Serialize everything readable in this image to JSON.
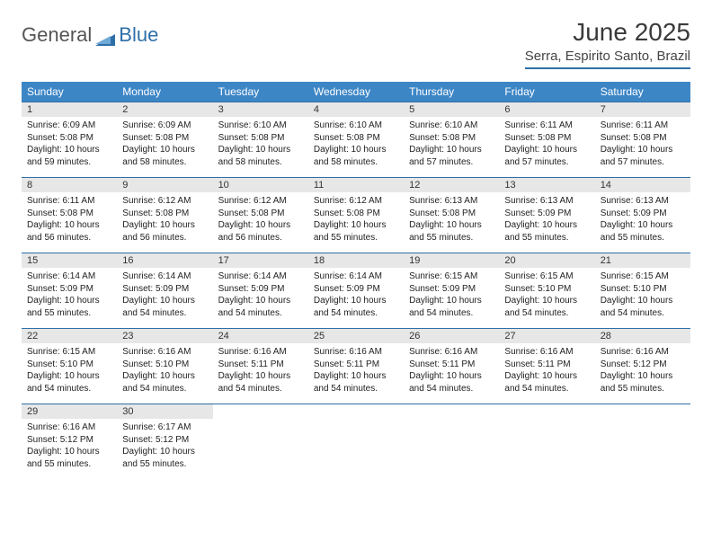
{
  "logo": {
    "word1": "General",
    "word2": "Blue"
  },
  "title": "June 2025",
  "location": "Serra, Espirito Santo, Brazil",
  "colors": {
    "header_bg": "#3d86c6",
    "header_text": "#ffffff",
    "week_border": "#2f6fa8",
    "daynum_bg": "#e7e7e7",
    "body_text": "#222222",
    "logo_accent": "#2f6fa8"
  },
  "typography": {
    "title_size_pt": 21,
    "location_size_pt": 11,
    "dayhead_size_pt": 9,
    "daybody_size_pt": 7.5
  },
  "day_headers": [
    "Sunday",
    "Monday",
    "Tuesday",
    "Wednesday",
    "Thursday",
    "Friday",
    "Saturday"
  ],
  "weeks": [
    [
      {
        "n": "1",
        "sr": "Sunrise: 6:09 AM",
        "ss": "Sunset: 5:08 PM",
        "d1": "Daylight: 10 hours",
        "d2": "and 59 minutes."
      },
      {
        "n": "2",
        "sr": "Sunrise: 6:09 AM",
        "ss": "Sunset: 5:08 PM",
        "d1": "Daylight: 10 hours",
        "d2": "and 58 minutes."
      },
      {
        "n": "3",
        "sr": "Sunrise: 6:10 AM",
        "ss": "Sunset: 5:08 PM",
        "d1": "Daylight: 10 hours",
        "d2": "and 58 minutes."
      },
      {
        "n": "4",
        "sr": "Sunrise: 6:10 AM",
        "ss": "Sunset: 5:08 PM",
        "d1": "Daylight: 10 hours",
        "d2": "and 58 minutes."
      },
      {
        "n": "5",
        "sr": "Sunrise: 6:10 AM",
        "ss": "Sunset: 5:08 PM",
        "d1": "Daylight: 10 hours",
        "d2": "and 57 minutes."
      },
      {
        "n": "6",
        "sr": "Sunrise: 6:11 AM",
        "ss": "Sunset: 5:08 PM",
        "d1": "Daylight: 10 hours",
        "d2": "and 57 minutes."
      },
      {
        "n": "7",
        "sr": "Sunrise: 6:11 AM",
        "ss": "Sunset: 5:08 PM",
        "d1": "Daylight: 10 hours",
        "d2": "and 57 minutes."
      }
    ],
    [
      {
        "n": "8",
        "sr": "Sunrise: 6:11 AM",
        "ss": "Sunset: 5:08 PM",
        "d1": "Daylight: 10 hours",
        "d2": "and 56 minutes."
      },
      {
        "n": "9",
        "sr": "Sunrise: 6:12 AM",
        "ss": "Sunset: 5:08 PM",
        "d1": "Daylight: 10 hours",
        "d2": "and 56 minutes."
      },
      {
        "n": "10",
        "sr": "Sunrise: 6:12 AM",
        "ss": "Sunset: 5:08 PM",
        "d1": "Daylight: 10 hours",
        "d2": "and 56 minutes."
      },
      {
        "n": "11",
        "sr": "Sunrise: 6:12 AM",
        "ss": "Sunset: 5:08 PM",
        "d1": "Daylight: 10 hours",
        "d2": "and 55 minutes."
      },
      {
        "n": "12",
        "sr": "Sunrise: 6:13 AM",
        "ss": "Sunset: 5:08 PM",
        "d1": "Daylight: 10 hours",
        "d2": "and 55 minutes."
      },
      {
        "n": "13",
        "sr": "Sunrise: 6:13 AM",
        "ss": "Sunset: 5:09 PM",
        "d1": "Daylight: 10 hours",
        "d2": "and 55 minutes."
      },
      {
        "n": "14",
        "sr": "Sunrise: 6:13 AM",
        "ss": "Sunset: 5:09 PM",
        "d1": "Daylight: 10 hours",
        "d2": "and 55 minutes."
      }
    ],
    [
      {
        "n": "15",
        "sr": "Sunrise: 6:14 AM",
        "ss": "Sunset: 5:09 PM",
        "d1": "Daylight: 10 hours",
        "d2": "and 55 minutes."
      },
      {
        "n": "16",
        "sr": "Sunrise: 6:14 AM",
        "ss": "Sunset: 5:09 PM",
        "d1": "Daylight: 10 hours",
        "d2": "and 54 minutes."
      },
      {
        "n": "17",
        "sr": "Sunrise: 6:14 AM",
        "ss": "Sunset: 5:09 PM",
        "d1": "Daylight: 10 hours",
        "d2": "and 54 minutes."
      },
      {
        "n": "18",
        "sr": "Sunrise: 6:14 AM",
        "ss": "Sunset: 5:09 PM",
        "d1": "Daylight: 10 hours",
        "d2": "and 54 minutes."
      },
      {
        "n": "19",
        "sr": "Sunrise: 6:15 AM",
        "ss": "Sunset: 5:09 PM",
        "d1": "Daylight: 10 hours",
        "d2": "and 54 minutes."
      },
      {
        "n": "20",
        "sr": "Sunrise: 6:15 AM",
        "ss": "Sunset: 5:10 PM",
        "d1": "Daylight: 10 hours",
        "d2": "and 54 minutes."
      },
      {
        "n": "21",
        "sr": "Sunrise: 6:15 AM",
        "ss": "Sunset: 5:10 PM",
        "d1": "Daylight: 10 hours",
        "d2": "and 54 minutes."
      }
    ],
    [
      {
        "n": "22",
        "sr": "Sunrise: 6:15 AM",
        "ss": "Sunset: 5:10 PM",
        "d1": "Daylight: 10 hours",
        "d2": "and 54 minutes."
      },
      {
        "n": "23",
        "sr": "Sunrise: 6:16 AM",
        "ss": "Sunset: 5:10 PM",
        "d1": "Daylight: 10 hours",
        "d2": "and 54 minutes."
      },
      {
        "n": "24",
        "sr": "Sunrise: 6:16 AM",
        "ss": "Sunset: 5:11 PM",
        "d1": "Daylight: 10 hours",
        "d2": "and 54 minutes."
      },
      {
        "n": "25",
        "sr": "Sunrise: 6:16 AM",
        "ss": "Sunset: 5:11 PM",
        "d1": "Daylight: 10 hours",
        "d2": "and 54 minutes."
      },
      {
        "n": "26",
        "sr": "Sunrise: 6:16 AM",
        "ss": "Sunset: 5:11 PM",
        "d1": "Daylight: 10 hours",
        "d2": "and 54 minutes."
      },
      {
        "n": "27",
        "sr": "Sunrise: 6:16 AM",
        "ss": "Sunset: 5:11 PM",
        "d1": "Daylight: 10 hours",
        "d2": "and 54 minutes."
      },
      {
        "n": "28",
        "sr": "Sunrise: 6:16 AM",
        "ss": "Sunset: 5:12 PM",
        "d1": "Daylight: 10 hours",
        "d2": "and 55 minutes."
      }
    ],
    [
      {
        "n": "29",
        "sr": "Sunrise: 6:16 AM",
        "ss": "Sunset: 5:12 PM",
        "d1": "Daylight: 10 hours",
        "d2": "and 55 minutes."
      },
      {
        "n": "30",
        "sr": "Sunrise: 6:17 AM",
        "ss": "Sunset: 5:12 PM",
        "d1": "Daylight: 10 hours",
        "d2": "and 55 minutes."
      },
      {
        "empty": true
      },
      {
        "empty": true
      },
      {
        "empty": true
      },
      {
        "empty": true
      },
      {
        "empty": true
      }
    ]
  ]
}
